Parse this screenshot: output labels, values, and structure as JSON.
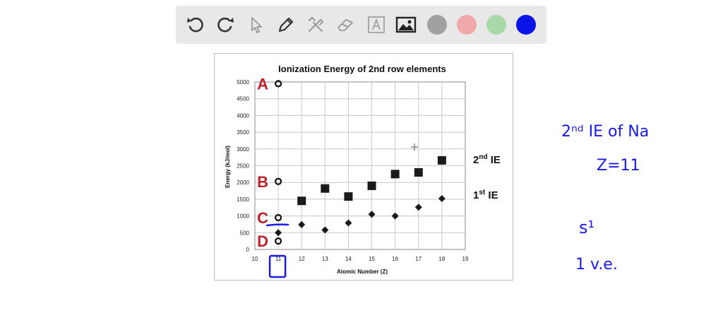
{
  "toolbar": {
    "tools": [
      {
        "name": "undo-icon"
      },
      {
        "name": "redo-icon"
      },
      {
        "name": "pointer-icon"
      },
      {
        "name": "pen-icon"
      },
      {
        "name": "tools-icon"
      },
      {
        "name": "eraser-icon"
      },
      {
        "name": "text-icon"
      },
      {
        "name": "image-icon"
      }
    ],
    "colors": [
      "#a0a0a0",
      "#f0a8a8",
      "#a8d8a8",
      "#0a14e6"
    ]
  },
  "chart_data": {
    "type": "scatter",
    "title": "Ionization Energy of 2nd row elements",
    "xlabel": "Atomic Number (Z)",
    "ylabel": "Energy (kJ/mol)",
    "xlim": [
      10,
      19
    ],
    "ylim": [
      0,
      5000
    ],
    "x_ticks": [
      "10",
      "11",
      "12",
      "13",
      "14",
      "15",
      "16",
      "17",
      "18",
      "19"
    ],
    "y_ticks": [
      "0",
      "500",
      "1000",
      "1500",
      "2000",
      "2500",
      "3000",
      "3500",
      "4000",
      "4500",
      "5000"
    ],
    "grid": true,
    "series": [
      {
        "name": "2nd IE",
        "marker": "square",
        "x": [
          12,
          13,
          14,
          15,
          16,
          17,
          18
        ],
        "y": [
          1450,
          1820,
          1580,
          1900,
          2250,
          2300,
          2660
        ]
      },
      {
        "name": "1st IE",
        "marker": "diamond",
        "x": [
          11,
          12,
          13,
          14,
          15,
          16,
          17,
          18
        ],
        "y": [
          500,
          740,
          580,
          790,
          1050,
          1000,
          1260,
          1520
        ]
      }
    ],
    "options": [
      {
        "label": "A",
        "x": 11,
        "y": 4950
      },
      {
        "label": "B",
        "x": 11,
        "y": 2030
      },
      {
        "label": "C",
        "x": 11,
        "y": 950
      },
      {
        "label": "D",
        "x": 11,
        "y": 250
      }
    ],
    "series_labels": [
      {
        "base": "2",
        "sup": "nd",
        "rest": " IE"
      },
      {
        "base": "1",
        "sup": "st",
        "rest": " IE"
      }
    ]
  },
  "handwriting": {
    "line1": "2ⁿᵈ IE of Na",
    "line2": "Z=11",
    "line3": "s¹",
    "line4": "1 v.e."
  }
}
